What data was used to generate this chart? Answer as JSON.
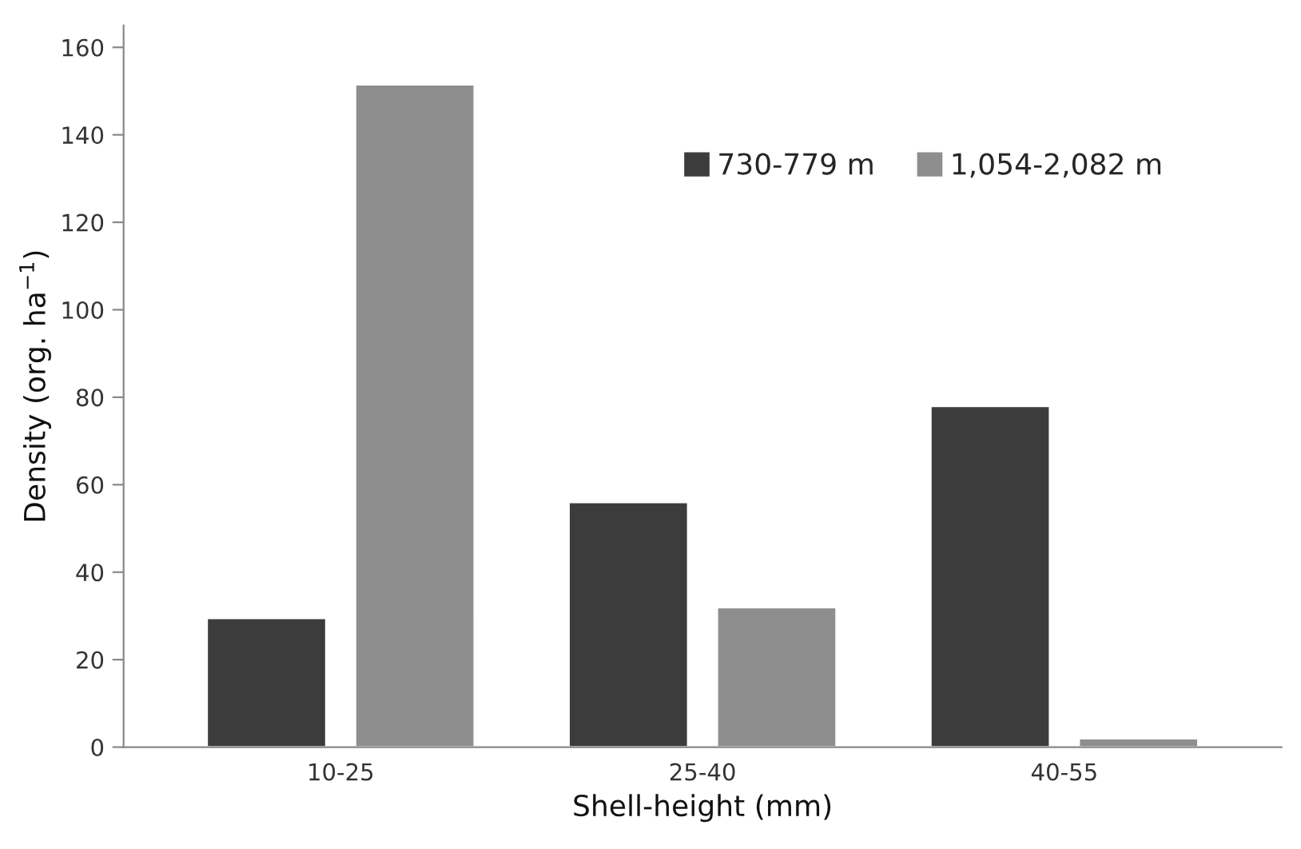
{
  "chart_data": {
    "type": "bar",
    "xlabel": "Shell-height (mm)",
    "ylabel": "Density (org. ha$^{−1}$)",
    "categories": [
      "10-25",
      "25-40",
      "40-55"
    ],
    "series": [
      {
        "name": "730-779 m",
        "color": "#3c3c3c",
        "values": [
          29.5,
          56,
          78
        ]
      },
      {
        "name": "1,054-2,082 m",
        "color": "#8e8e8e",
        "values": [
          151.5,
          32,
          2
        ]
      }
    ],
    "ylim": [
      0,
      165
    ],
    "yticks": [
      0,
      20,
      40,
      60,
      80,
      100,
      120,
      140,
      160
    ],
    "grid": false,
    "legend": "top right"
  }
}
